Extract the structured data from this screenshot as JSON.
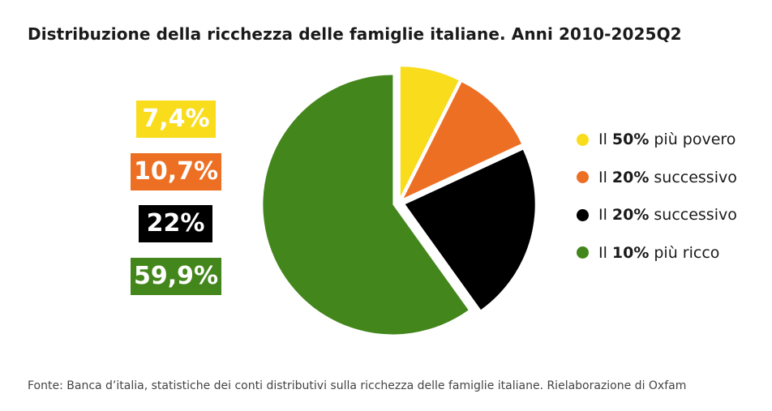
{
  "chart_data": {
    "type": "pie",
    "title": "Distribuzione della ricchezza delle famiglie italiane. Anni 2010-2025Q2",
    "slices": [
      {
        "label_prefix": "Il",
        "label_bold": "50%",
        "label_suffix": "più povero",
        "value": 7.4,
        "value_label": "7,4%",
        "color": "#f9dc1c"
      },
      {
        "label_prefix": "Il",
        "label_bold": "20%",
        "label_suffix": "successivo",
        "value": 10.7,
        "value_label": "10,7%",
        "color": "#ed6f24"
      },
      {
        "label_prefix": "Il",
        "label_bold": "20%",
        "label_suffix": "successivo",
        "value": 22,
        "value_label": "22%",
        "color": "#000000"
      },
      {
        "label_prefix": "Il",
        "label_bold": "10%",
        "label_suffix": "più ricco",
        "value": 59.9,
        "value_label": "59,9%",
        "color": "#43861c"
      }
    ],
    "legend_position": "right",
    "source": "Fonte: Banca d’italia, statistiche dei conti distributivi sulla ricchezza delle famiglie italiane. Rielaborazione di Oxfam"
  }
}
